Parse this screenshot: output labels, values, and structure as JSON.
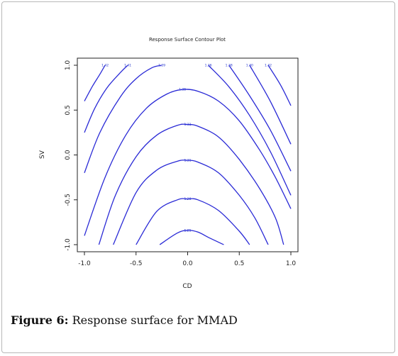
{
  "figure": {
    "caption_label": "Figure 6:",
    "caption_text": " Response surface for MMAD"
  },
  "colors": {
    "contour": "#2a2ad6",
    "axis": "#222222",
    "frame_border": "#b8b8b8"
  },
  "chart_data": {
    "type": "contour",
    "title": "Response Surface Contour Plot",
    "xlabel": "CD",
    "ylabel": "SV",
    "xlim": [
      -1.0,
      1.0
    ],
    "ylim": [
      -1.0,
      1.0
    ],
    "x_ticks": [
      "-1.0",
      "-0.5",
      "0.0",
      "0.5",
      "1.0"
    ],
    "y_ticks": [
      "-1.0",
      "-0.5",
      "0.0",
      "0.5",
      "1.0"
    ],
    "grid": false,
    "contours": [
      {
        "label": "1.25",
        "points": [
          [
            -0.27,
            -1.0
          ],
          [
            -0.1,
            -0.87
          ],
          [
            0.0,
            -0.84
          ],
          [
            0.1,
            -0.86
          ],
          [
            0.22,
            -0.93
          ],
          [
            0.35,
            -1.0
          ]
        ]
      },
      {
        "label": "1.28",
        "points": [
          [
            -0.5,
            -1.0
          ],
          [
            -0.3,
            -0.63
          ],
          [
            -0.1,
            -0.5
          ],
          [
            0.0,
            -0.49
          ],
          [
            0.1,
            -0.5
          ],
          [
            0.3,
            -0.62
          ],
          [
            0.5,
            -0.85
          ],
          [
            0.6,
            -1.0
          ]
        ]
      },
      {
        "label": "1.31",
        "points": [
          [
            -0.72,
            -1.0
          ],
          [
            -0.5,
            -0.42
          ],
          [
            -0.3,
            -0.17
          ],
          [
            -0.1,
            -0.07
          ],
          [
            0.0,
            -0.06
          ],
          [
            0.1,
            -0.08
          ],
          [
            0.3,
            -0.2
          ],
          [
            0.5,
            -0.45
          ],
          [
            0.65,
            -0.7
          ],
          [
            0.78,
            -1.0
          ]
        ]
      },
      {
        "label": "1.33",
        "points": [
          [
            -0.86,
            -1.0
          ],
          [
            -0.7,
            -0.45
          ],
          [
            -0.5,
            -0.02
          ],
          [
            -0.3,
            0.22
          ],
          [
            -0.1,
            0.33
          ],
          [
            0.0,
            0.34
          ],
          [
            0.1,
            0.32
          ],
          [
            0.3,
            0.2
          ],
          [
            0.5,
            -0.05
          ],
          [
            0.7,
            -0.38
          ],
          [
            0.85,
            -0.7
          ],
          [
            0.93,
            -1.0
          ]
        ]
      },
      {
        "label": "1.35",
        "points": [
          [
            -1.0,
            -0.9
          ],
          [
            -0.8,
            -0.25
          ],
          [
            -0.6,
            0.22
          ],
          [
            -0.4,
            0.52
          ],
          [
            -0.2,
            0.68
          ],
          [
            -0.05,
            0.73
          ],
          [
            0.1,
            0.71
          ],
          [
            0.3,
            0.6
          ],
          [
            0.5,
            0.38
          ],
          [
            0.7,
            0.05
          ],
          [
            0.85,
            -0.25
          ],
          [
            1.0,
            -0.6
          ]
        ]
      },
      {
        "label": "1.39",
        "points": [
          [
            -1.0,
            -0.2
          ],
          [
            -0.85,
            0.25
          ],
          [
            -0.65,
            0.65
          ],
          [
            -0.5,
            0.85
          ],
          [
            -0.35,
            0.97
          ],
          [
            -0.25,
            1.0
          ]
        ]
      },
      {
        "label": "1.41",
        "points": [
          [
            -1.0,
            0.25
          ],
          [
            -0.9,
            0.52
          ],
          [
            -0.78,
            0.75
          ],
          [
            -0.65,
            0.92
          ],
          [
            -0.58,
            1.0
          ]
        ]
      },
      {
        "label": "1.42",
        "points": [
          [
            -1.0,
            0.6
          ],
          [
            -0.92,
            0.77
          ],
          [
            -0.85,
            0.9
          ],
          [
            -0.8,
            1.0
          ]
        ]
      },
      {
        "label": "1.36",
        "points": [
          [
            0.2,
            1.0
          ],
          [
            0.4,
            0.76
          ],
          [
            0.6,
            0.44
          ],
          [
            0.8,
            0.04
          ],
          [
            1.0,
            -0.45
          ]
        ]
      },
      {
        "label": "1.38",
        "points": [
          [
            0.4,
            1.0
          ],
          [
            0.6,
            0.66
          ],
          [
            0.8,
            0.28
          ],
          [
            1.0,
            -0.18
          ]
        ]
      },
      {
        "label": "1.40",
        "points": [
          [
            0.6,
            1.0
          ],
          [
            0.8,
            0.6
          ],
          [
            1.0,
            0.12
          ]
        ]
      },
      {
        "label": "1.42",
        "points": [
          [
            0.78,
            1.0
          ],
          [
            0.9,
            0.78
          ],
          [
            1.0,
            0.55
          ]
        ]
      }
    ]
  }
}
